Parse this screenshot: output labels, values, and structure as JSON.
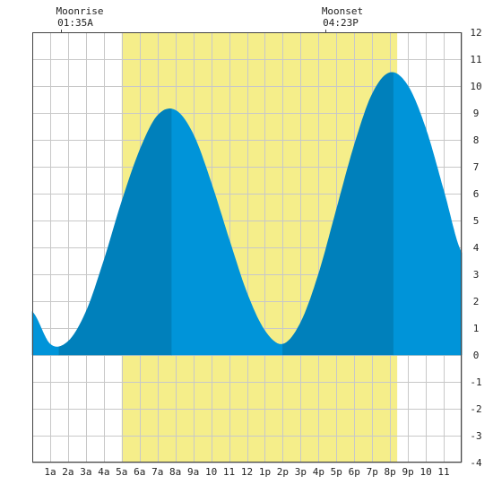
{
  "moon": {
    "rise_label": "Moonrise",
    "rise_time": "01:35A",
    "set_label": "Moonset",
    "set_time": "04:23P"
  },
  "colors": {
    "daylight": "#f5ee8a",
    "tide_light": "#0094d9",
    "tide_dark": "#0080bb",
    "grid": "#c8c8c8",
    "border": "#444444"
  },
  "chart_data": {
    "type": "area",
    "title": "",
    "xlabel": "",
    "ylabel": "",
    "x_range_hours": [
      -1,
      23
    ],
    "ylim": [
      -4,
      12
    ],
    "grid": true,
    "x_tick_labels": [
      "1a",
      "2a",
      "3a",
      "4a",
      "5a",
      "6a",
      "7a",
      "8a",
      "9a",
      "10",
      "11",
      "12",
      "1p",
      "2p",
      "3p",
      "4p",
      "5p",
      "6p",
      "7p",
      "8p",
      "9p",
      "10",
      "11"
    ],
    "x_tick_hours": [
      0,
      1,
      2,
      3,
      4,
      5,
      6,
      7,
      8,
      9,
      10,
      11,
      12,
      13,
      14,
      15,
      16,
      17,
      18,
      19,
      20,
      21,
      22
    ],
    "y_tick_labels": [
      "-4",
      "-3",
      "-2",
      "-1",
      "0",
      "1",
      "2",
      "3",
      "4",
      "5",
      "6",
      "7",
      "8",
      "9",
      "10",
      "11",
      "12"
    ],
    "daylight_hours": [
      4.0,
      19.4
    ],
    "moonrise_hour": 0.58,
    "moonset_hour": 15.38,
    "tide_extremes": [
      {
        "type": "low",
        "hour": 0.5,
        "height": 0.3
      },
      {
        "type": "high",
        "hour": 6.8,
        "height": 9.2
      },
      {
        "type": "low",
        "hour": 13.0,
        "height": 0.4
      },
      {
        "type": "high",
        "hour": 19.2,
        "height": 10.6
      }
    ],
    "series": [
      {
        "x": [
          -1.0,
          0.0,
          1.0,
          2.0,
          3.0,
          4.0,
          5.0,
          6.0,
          7.0,
          8.0,
          9.0,
          10.0,
          11.0,
          12.0,
          13.0,
          14.0,
          15.0,
          16.0,
          17.0,
          18.0,
          19.0,
          20.0,
          21.0,
          22.0,
          23.0
        ],
        "y": [
          1.6,
          0.4,
          0.5,
          1.6,
          3.5,
          5.7,
          7.6,
          8.9,
          9.1,
          8.2,
          6.4,
          4.3,
          2.3,
          0.9,
          0.4,
          1.2,
          3.0,
          5.4,
          7.8,
          9.7,
          10.5,
          10.0,
          8.4,
          6.1,
          3.8
        ]
      }
    ]
  }
}
